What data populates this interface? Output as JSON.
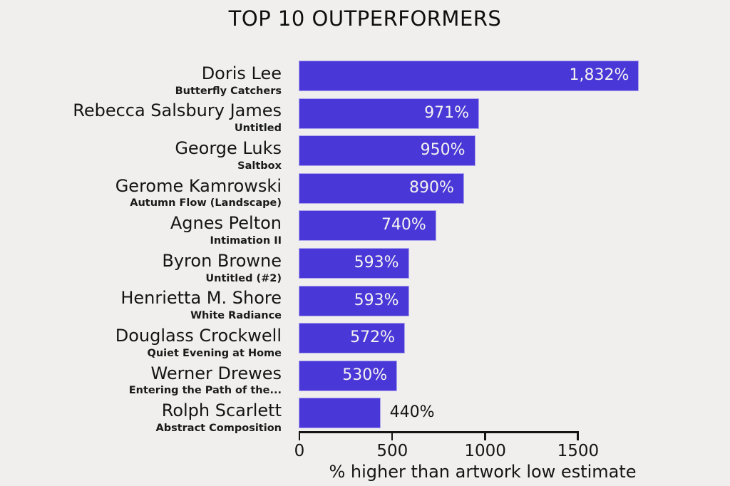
{
  "title": "TOP 10 OUTPERFORMERS",
  "colors": {
    "background": "#F0EFED",
    "bar": "#4938D7",
    "value_inside_text": "#F4F2F0",
    "value_outside_text": "#141414",
    "axis": "#141414"
  },
  "chart_data": {
    "type": "bar",
    "orientation": "horizontal",
    "title": "TOP 10 OUTPERFORMERS",
    "xlabel": "% higher than artwork low estimate",
    "xlim": [
      0,
      1870
    ],
    "xticks": [
      0,
      500,
      1000,
      1500
    ],
    "grid": false,
    "legend": "none",
    "series": [
      {
        "artist": "Doris Lee",
        "artwork": "Butterfly Catchers",
        "value": 1832,
        "label": "1,832%"
      },
      {
        "artist": "Rebecca Salsbury James",
        "artwork": "Untitled",
        "value": 971,
        "label": "971%"
      },
      {
        "artist": "George Luks",
        "artwork": "Saltbox",
        "value": 950,
        "label": "950%"
      },
      {
        "artist": "Gerome Kamrowski",
        "artwork": "Autumn Flow (Landscape)",
        "value": 890,
        "label": "890%"
      },
      {
        "artist": "Agnes Pelton",
        "artwork": "Intimation II",
        "value": 740,
        "label": "740%"
      },
      {
        "artist": "Byron Browne",
        "artwork": "Untitled (#2)",
        "value": 593,
        "label": "593%"
      },
      {
        "artist": "Henrietta M. Shore",
        "artwork": "White Radiance",
        "value": 593,
        "label": "593%"
      },
      {
        "artist": "Douglass Crockwell",
        "artwork": "Quiet Evening at Home",
        "value": 572,
        "label": "572%"
      },
      {
        "artist": "Werner Drewes",
        "artwork": "Entering the Path of the...",
        "value": 530,
        "label": "530%"
      },
      {
        "artist": "Rolph Scarlett",
        "artwork": "Abstract Composition",
        "value": 440,
        "label": "440%"
      }
    ]
  }
}
